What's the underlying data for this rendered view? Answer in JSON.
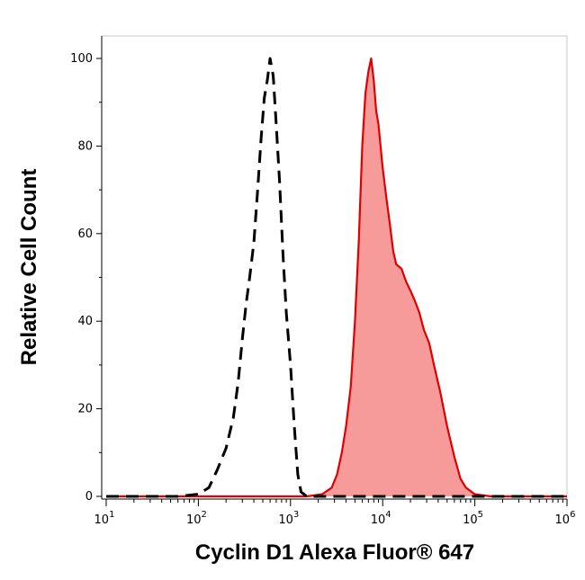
{
  "chart_data": {
    "type": "area",
    "title": "",
    "xlabel": "Cyclin D1 Alexa Fluor® 647",
    "ylabel": "Relative Cell Count",
    "x_scale": "log",
    "xlim": [
      10,
      1000000
    ],
    "ylim": [
      0,
      100
    ],
    "x_ticks": [
      {
        "base": "10",
        "exp": "1",
        "value": 10
      },
      {
        "base": "10",
        "exp": "2",
        "value": 100
      },
      {
        "base": "10",
        "exp": "3",
        "value": 1000
      },
      {
        "base": "10",
        "exp": "4",
        "value": 10000
      },
      {
        "base": "10",
        "exp": "5",
        "value": 100000
      },
      {
        "base": "10",
        "exp": "6",
        "value": 1000000
      }
    ],
    "y_ticks": [
      "0",
      "20",
      "40",
      "60",
      "80",
      "100"
    ],
    "grid": false,
    "legend": "none",
    "series": [
      {
        "style": "dashed-outline",
        "color": "#000000",
        "points": [
          [
            10,
            0
          ],
          [
            60,
            0
          ],
          [
            100,
            0.5
          ],
          [
            130,
            2
          ],
          [
            160,
            6
          ],
          [
            200,
            11
          ],
          [
            240,
            18
          ],
          [
            270,
            26
          ],
          [
            300,
            36
          ],
          [
            330,
            44
          ],
          [
            360,
            50
          ],
          [
            400,
            58
          ],
          [
            440,
            70
          ],
          [
            480,
            82
          ],
          [
            520,
            91
          ],
          [
            560,
            95
          ],
          [
            600,
            100
          ],
          [
            650,
            96
          ],
          [
            700,
            85
          ],
          [
            760,
            72
          ],
          [
            830,
            55
          ],
          [
            900,
            42
          ],
          [
            1000,
            30
          ],
          [
            1100,
            16
          ],
          [
            1200,
            5
          ],
          [
            1300,
            1
          ],
          [
            1500,
            0
          ],
          [
            1000000,
            0
          ]
        ]
      },
      {
        "style": "filled",
        "color": "#e00000",
        "fill": "#f79a9a",
        "points": [
          [
            10,
            0
          ],
          [
            1500,
            0
          ],
          [
            2200,
            0.5
          ],
          [
            2800,
            2
          ],
          [
            3200,
            5
          ],
          [
            3600,
            10
          ],
          [
            4000,
            16
          ],
          [
            4500,
            25
          ],
          [
            5000,
            40
          ],
          [
            5500,
            58
          ],
          [
            6000,
            80
          ],
          [
            6500,
            92
          ],
          [
            7000,
            97
          ],
          [
            7500,
            100
          ],
          [
            8000,
            95
          ],
          [
            8500,
            88
          ],
          [
            9000,
            85
          ],
          [
            10000,
            75
          ],
          [
            11000,
            68
          ],
          [
            12000,
            62
          ],
          [
            13000,
            56
          ],
          [
            14000,
            53
          ],
          [
            16000,
            52
          ],
          [
            18000,
            49
          ],
          [
            20000,
            47
          ],
          [
            22000,
            45
          ],
          [
            25000,
            42
          ],
          [
            28000,
            38
          ],
          [
            32000,
            35
          ],
          [
            36000,
            30
          ],
          [
            42000,
            24
          ],
          [
            50000,
            16
          ],
          [
            60000,
            9
          ],
          [
            70000,
            4
          ],
          [
            80000,
            2
          ],
          [
            100000,
            0.5
          ],
          [
            150000,
            0
          ],
          [
            1000000,
            0
          ]
        ]
      }
    ]
  }
}
